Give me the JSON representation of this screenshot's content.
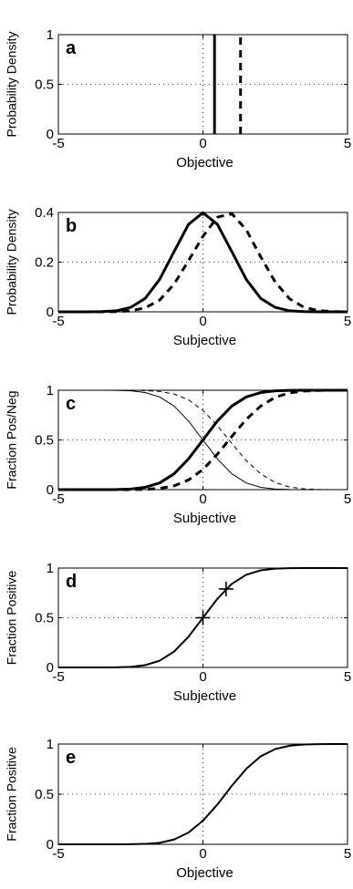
{
  "chart_data": [
    {
      "type": "line",
      "panel": "a",
      "xlabel": "Objective",
      "ylabel": "Probability Density",
      "xlim": [
        -5,
        5
      ],
      "ylim": [
        0,
        1
      ],
      "xticks": [
        -5,
        0,
        5
      ],
      "yticks": [
        0,
        0.5,
        1
      ],
      "xtick_labels": [
        "-5",
        "0",
        "5"
      ],
      "ytick_labels": [
        "0",
        "0.5",
        "1"
      ],
      "grid": "dotted",
      "series": [
        {
          "style": "solid",
          "weight": "thick",
          "x": [
            0.4,
            0.4
          ],
          "y": [
            0,
            1
          ]
        },
        {
          "style": "dashed",
          "weight": "thick",
          "x": [
            1.3,
            1.3
          ],
          "y": [
            0,
            1
          ]
        }
      ]
    },
    {
      "type": "line",
      "panel": "b",
      "xlabel": "Subjective",
      "ylabel": "Probability Density",
      "xlim": [
        -5,
        5
      ],
      "ylim": [
        0,
        0.4
      ],
      "xticks": [
        -5,
        0,
        5
      ],
      "yticks": [
        0,
        0.2,
        0.4
      ],
      "xtick_labels": [
        "-5",
        "0",
        "5"
      ],
      "ytick_labels": [
        "0",
        "0.2",
        "0.4"
      ],
      "grid": "dotted",
      "series": [
        {
          "style": "solid",
          "weight": "thick",
          "x": [
            -5,
            -4.5,
            -4,
            -3.5,
            -3,
            -2.5,
            -2,
            -1.5,
            -1,
            -0.5,
            0,
            0.5,
            1,
            1.5,
            2,
            2.5,
            3,
            3.5,
            4,
            4.5,
            5
          ],
          "y": [
            0,
            0,
            0,
            0.001,
            0.004,
            0.018,
            0.054,
            0.13,
            0.242,
            0.352,
            0.399,
            0.352,
            0.242,
            0.13,
            0.054,
            0.018,
            0.004,
            0.001,
            0,
            0,
            0
          ]
        },
        {
          "style": "dashed",
          "weight": "thick",
          "x": [
            -5,
            -4.5,
            -4,
            -3.5,
            -3,
            -2.5,
            -2,
            -1.5,
            -1,
            -0.5,
            0,
            0.5,
            1,
            1.5,
            2,
            2.5,
            3,
            3.5,
            4,
            4.5,
            5
          ],
          "y": [
            0,
            0,
            0,
            0,
            0.001,
            0.004,
            0.016,
            0.047,
            0.111,
            0.206,
            0.304,
            0.381,
            0.395,
            0.33,
            0.221,
            0.12,
            0.052,
            0.018,
            0.005,
            0.001,
            0
          ]
        }
      ]
    },
    {
      "type": "line",
      "panel": "c",
      "xlabel": "Subjective",
      "ylabel": "Fraction Pos/Neg",
      "xlim": [
        -5,
        5
      ],
      "ylim": [
        0,
        1
      ],
      "xticks": [
        -5,
        0,
        5
      ],
      "yticks": [
        0,
        0.5,
        1
      ],
      "xtick_labels": [
        "-5",
        "0",
        "5"
      ],
      "ytick_labels": [
        "0",
        "0.5",
        "1"
      ],
      "grid": "dotted",
      "series": [
        {
          "style": "solid",
          "weight": "thick",
          "x": [
            -5,
            -4.5,
            -4,
            -3.5,
            -3,
            -2.5,
            -2,
            -1.5,
            -1,
            -0.5,
            0,
            0.5,
            1,
            1.5,
            2,
            2.5,
            3,
            3.5,
            4,
            4.5,
            5
          ],
          "y": [
            0,
            0,
            0,
            0,
            0.001,
            0.006,
            0.023,
            0.067,
            0.159,
            0.309,
            0.5,
            0.691,
            0.841,
            0.933,
            0.977,
            0.994,
            0.999,
            1,
            1,
            1,
            1
          ]
        },
        {
          "style": "dashed",
          "weight": "thick",
          "x": [
            -5,
            -4.5,
            -4,
            -3.5,
            -3,
            -2.5,
            -2,
            -1.5,
            -1,
            -0.5,
            0,
            0.5,
            1,
            1.5,
            2,
            2.5,
            3,
            3.5,
            4,
            4.5,
            5
          ],
          "y": [
            0,
            0,
            0,
            0,
            0,
            0,
            0.003,
            0.012,
            0.038,
            0.097,
            0.203,
            0.357,
            0.536,
            0.708,
            0.841,
            0.929,
            0.974,
            0.992,
            0.998,
            1,
            1
          ]
        },
        {
          "style": "solid",
          "weight": "thin",
          "x": [
            -5,
            -4.5,
            -4,
            -3.5,
            -3,
            -2.5,
            -2,
            -1.5,
            -1,
            -0.5,
            0,
            0.5,
            1,
            1.5,
            2,
            2.5,
            3,
            3.5,
            4,
            4.5,
            5
          ],
          "y": [
            1,
            1,
            1,
            1,
            0.999,
            0.994,
            0.977,
            0.933,
            0.841,
            0.691,
            0.5,
            0.309,
            0.159,
            0.067,
            0.023,
            0.006,
            0.001,
            0,
            0,
            0,
            0
          ]
        },
        {
          "style": "dashed",
          "weight": "thin",
          "x": [
            -5,
            -4.5,
            -4,
            -3.5,
            -3,
            -2.5,
            -2,
            -1.5,
            -1,
            -0.5,
            0,
            0.5,
            1,
            1.5,
            2,
            2.5,
            3,
            3.5,
            4,
            4.5,
            5
          ],
          "y": [
            1,
            1,
            1,
            1,
            1,
            1,
            0.997,
            0.988,
            0.962,
            0.903,
            0.797,
            0.643,
            0.464,
            0.292,
            0.159,
            0.071,
            0.026,
            0.008,
            0.002,
            0,
            0
          ]
        }
      ]
    },
    {
      "type": "line",
      "panel": "d",
      "xlabel": "Subjective",
      "ylabel": "Fraction Positive",
      "xlim": [
        -5,
        5
      ],
      "ylim": [
        0,
        1
      ],
      "xticks": [
        -5,
        0,
        5
      ],
      "yticks": [
        0,
        0.5,
        1
      ],
      "xtick_labels": [
        "-5",
        "0",
        "5"
      ],
      "ytick_labels": [
        "0",
        "0.5",
        "1"
      ],
      "grid": "dotted",
      "series": [
        {
          "style": "solid",
          "weight": "medium",
          "x": [
            -5,
            -4.5,
            -4,
            -3.5,
            -3,
            -2.5,
            -2,
            -1.5,
            -1,
            -0.5,
            0,
            0.5,
            1,
            1.5,
            2,
            2.5,
            3,
            3.5,
            4,
            4.5,
            5
          ],
          "y": [
            0,
            0,
            0,
            0,
            0.001,
            0.006,
            0.023,
            0.067,
            0.159,
            0.309,
            0.5,
            0.691,
            0.841,
            0.933,
            0.977,
            0.994,
            0.999,
            1,
            1,
            1,
            1
          ]
        }
      ],
      "markers": [
        {
          "symbol": "+",
          "x": 0,
          "y": 0.5
        },
        {
          "symbol": "+",
          "x": 0.8,
          "y": 0.79
        }
      ]
    },
    {
      "type": "line",
      "panel": "e",
      "xlabel": "Objective",
      "ylabel": "Fraction Positive",
      "xlim": [
        -5,
        5
      ],
      "ylim": [
        0,
        1
      ],
      "xticks": [
        -5,
        0,
        5
      ],
      "yticks": [
        0,
        0.5,
        1
      ],
      "xtick_labels": [
        "-5",
        "0",
        "5"
      ],
      "ytick_labels": [
        "0",
        "0.5",
        "1"
      ],
      "grid": "dotted",
      "series": [
        {
          "style": "solid",
          "weight": "medium",
          "x": [
            -5,
            -4.5,
            -4,
            -3.5,
            -3,
            -2.5,
            -2,
            -1.5,
            -1,
            -0.5,
            0,
            0.5,
            1,
            1.5,
            2,
            2.5,
            3,
            3.5,
            4,
            4.5,
            5
          ],
          "y": [
            0,
            0,
            0,
            0,
            0,
            0.001,
            0.004,
            0.015,
            0.048,
            0.117,
            0.236,
            0.397,
            0.584,
            0.753,
            0.878,
            0.95,
            0.983,
            0.995,
            0.999,
            1,
            1
          ]
        }
      ]
    }
  ]
}
